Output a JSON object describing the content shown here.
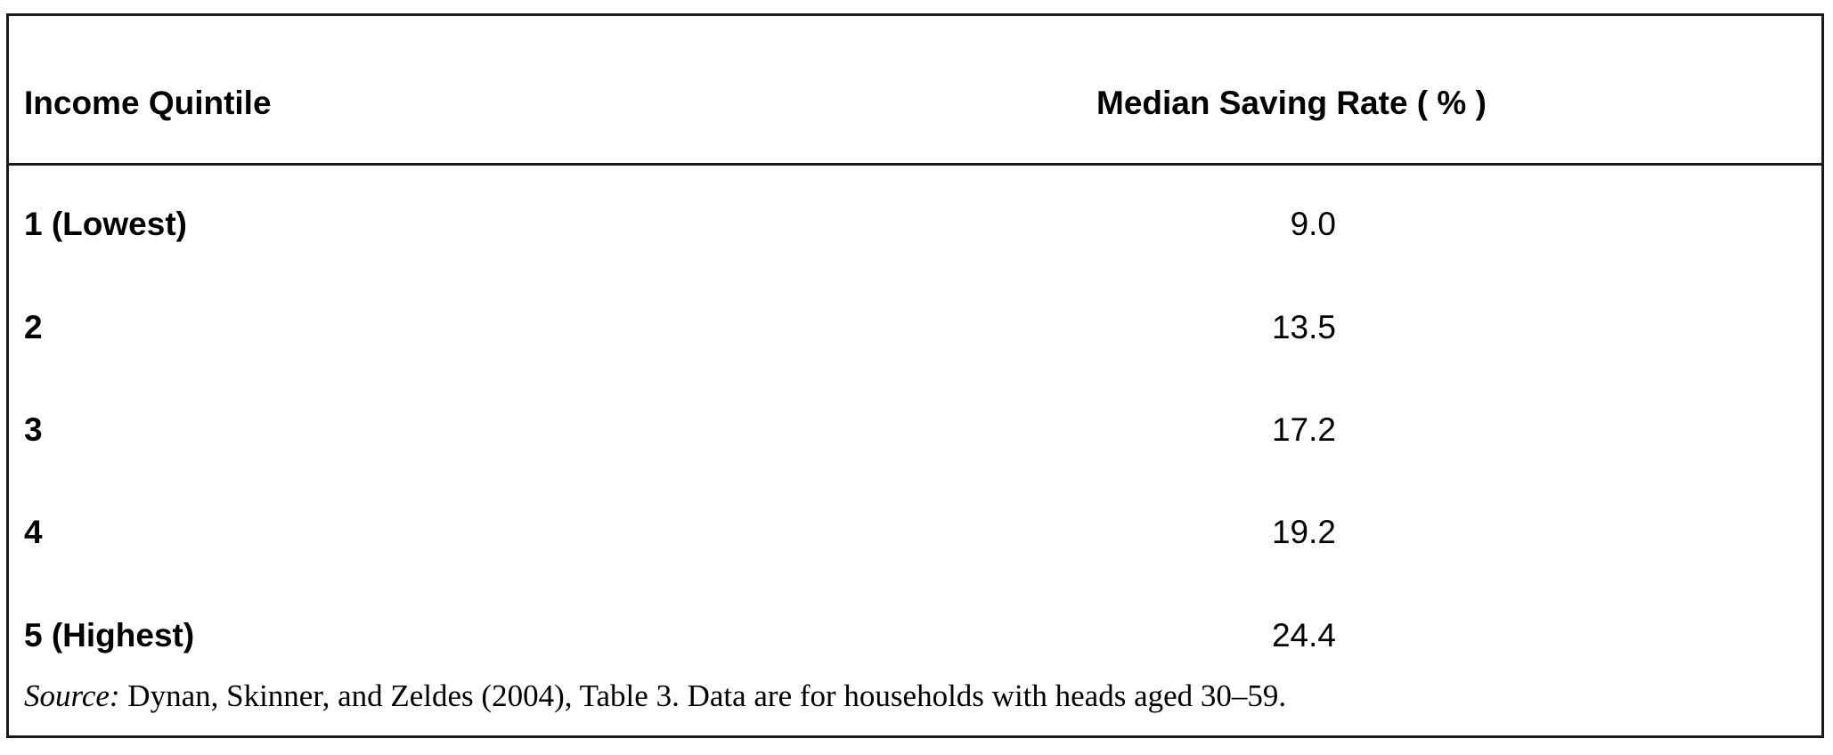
{
  "table": {
    "headers": {
      "quintile": "Income Quintile",
      "saving_rate": "Median Saving Rate ( % )"
    },
    "rows": [
      {
        "quintile": "1 (Lowest)",
        "saving_rate": "9.0"
      },
      {
        "quintile": "2",
        "saving_rate": "13.5"
      },
      {
        "quintile": "3",
        "saving_rate": "17.2"
      },
      {
        "quintile": "4",
        "saving_rate": "19.2"
      },
      {
        "quintile": "5 (Highest)",
        "saving_rate": "24.4"
      }
    ],
    "source": {
      "label": "Source:",
      "text": " Dynan, Skinner, and Zeldes (2004), Table 3. Data are for households with heads aged 30–59."
    }
  }
}
